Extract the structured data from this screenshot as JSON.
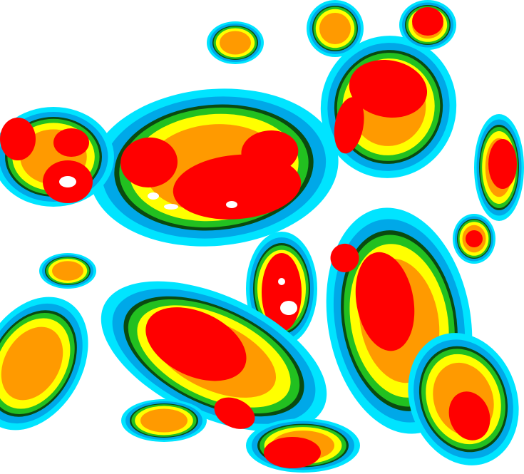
{
  "image": {
    "kind": "false-color cloud-top imagery",
    "palette": {
      "clear": "#ffffff",
      "light_blue": "#00e4ff",
      "blue": "#00a8e8",
      "dark_green": "#0a4a10",
      "green": "#22c020",
      "yellow": "#ffff00",
      "orange": "#ff9a00",
      "red": "#ff0000",
      "core": "#ffffff"
    }
  }
}
